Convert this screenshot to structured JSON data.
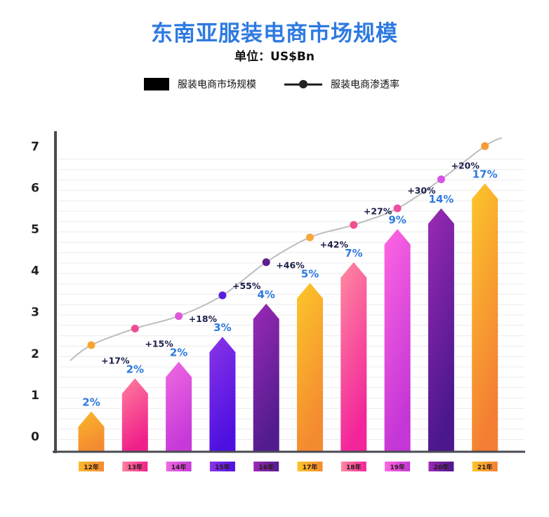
{
  "chart_data": {
    "type": "bar",
    "title": "东南亚服装电商市场规模",
    "subtitle": "单位：US$Bn",
    "xlabel": "",
    "ylabel": "",
    "ylim": [
      0,
      7
    ],
    "yticks": [
      0,
      1,
      2,
      3,
      4,
      5,
      6,
      7
    ],
    "grid": true,
    "legend_position": "top-center",
    "legend": [
      {
        "label": "服装电商市场规模",
        "kind": "bar"
      },
      {
        "label": "服装电商渗透率",
        "kind": "line"
      }
    ],
    "categories": [
      "12年",
      "13年",
      "14年",
      "15年",
      "16年",
      "17年",
      "18年",
      "19年",
      "20年",
      "21年"
    ],
    "series": [
      {
        "name": "服装电商市场规模",
        "type": "bar",
        "values": [
          0.6,
          1.4,
          1.8,
          2.4,
          3.2,
          3.7,
          4.2,
          5.0,
          5.5,
          6.1
        ]
      },
      {
        "name": "服装电商渗透率",
        "type": "line",
        "values": [
          2.2,
          2.6,
          2.9,
          3.4,
          4.2,
          4.8,
          5.1,
          5.5,
          6.2,
          7.0
        ]
      }
    ],
    "penetration_labels": [
      "2%",
      "2%",
      "2%",
      "3%",
      "4%",
      "5%",
      "7%",
      "9%",
      "14%",
      "17%"
    ],
    "growth_labels": [
      "+17%",
      "+15%",
      "+18%",
      "+55%",
      "+46%",
      "+42%",
      "+27%",
      "+30%",
      "+20%"
    ],
    "colors": [
      [
        "#fbb72a",
        "#f48a30"
      ],
      [
        "#ff7f9e",
        "#f0208a"
      ],
      [
        "#ef6ae0",
        "#c53ad8"
      ],
      [
        "#8a35e8",
        "#4e10e0"
      ],
      [
        "#9b2ab5",
        "#521c8e"
      ],
      [
        "#fcc62a",
        "#f48a30"
      ],
      [
        "#ff8aa0",
        "#f2259a"
      ],
      [
        "#ff66e2",
        "#c436d6"
      ],
      [
        "#9b2ab5",
        "#4a178c"
      ],
      [
        "#fcc62a",
        "#f47e34"
      ]
    ],
    "dot_colors": [
      "#f8a42e",
      "#ef4c95",
      "#de58db",
      "#5a1ee0",
      "#5c1e8c",
      "#f6a83a",
      "#f0508f",
      "#ee4fa0",
      "#d853e8",
      "#f59a34"
    ]
  }
}
